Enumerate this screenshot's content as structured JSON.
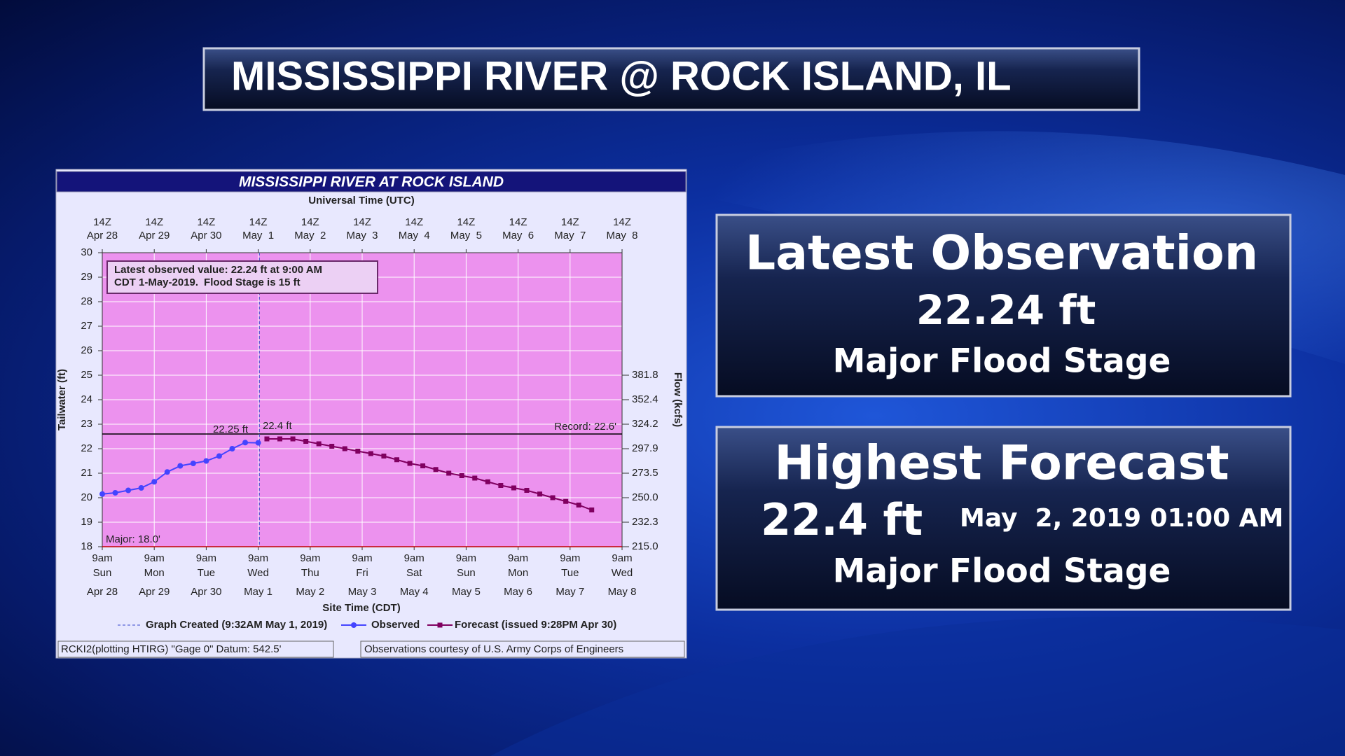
{
  "header": {
    "title": "MISSISSIPPI RIVER @ ROCK ISLAND, IL"
  },
  "panels": [
    {
      "title": "Latest Observation",
      "value": "22.24 ft",
      "stage": "Major Flood Stage"
    },
    {
      "title": "Highest Forecast",
      "value": "22.4 ft",
      "time": "May  2, 2019 01:00 AM",
      "stage": "Major Flood Stage"
    }
  ],
  "chart_data": {
    "type": "line",
    "title": "MISSISSIPPI RIVER AT ROCK ISLAND",
    "x2label": "Universal Time (UTC)",
    "xlabel": "Site Time (CDT)",
    "ylabel": "Tailwater (ft)",
    "y2label": "Flow (kcfs)",
    "xlim": [
      "04-28 09:00",
      "05-08 09:00"
    ],
    "x2lim": [
      "04-28 14:00",
      "05-08 14:00"
    ],
    "xticks": [
      {
        "value": "04-28 09:00",
        "label": [
          "9am",
          "Sun",
          "Apr 28"
        ]
      },
      {
        "value": "04-29 09:00",
        "label": [
          "9am",
          "Mon",
          "Apr 29"
        ]
      },
      {
        "value": "04-30 09:00",
        "label": [
          "9am",
          "Tue",
          "Apr 30"
        ]
      },
      {
        "value": "05-01 09:00",
        "label": [
          "9am",
          "Wed",
          "May 1"
        ]
      },
      {
        "value": "05-02 09:00",
        "label": [
          "9am",
          "Thu",
          "May 2"
        ]
      },
      {
        "value": "05-03 09:00",
        "label": [
          "9am",
          "Fri",
          "May 3"
        ]
      },
      {
        "value": "05-04 09:00",
        "label": [
          "9am",
          "Sat",
          "May 4"
        ]
      },
      {
        "value": "05-05 09:00",
        "label": [
          "9am",
          "Sun",
          "May 5"
        ]
      },
      {
        "value": "05-06 09:00",
        "label": [
          "9am",
          "Mon",
          "May 6"
        ]
      },
      {
        "value": "05-07 09:00",
        "label": [
          "9am",
          "Tue",
          "May 7"
        ]
      },
      {
        "value": "05-08 09:00",
        "label": [
          "9am",
          "Wed",
          "May 8"
        ]
      }
    ],
    "x2ticks": [
      {
        "value": "04-28 14:00",
        "label": [
          "14Z",
          "Apr 28"
        ]
      },
      {
        "value": "04-29 14:00",
        "label": [
          "14Z",
          "Apr 29"
        ]
      },
      {
        "value": "04-30 14:00",
        "label": [
          "14Z",
          "Apr 30"
        ]
      },
      {
        "value": "05-01 14:00",
        "label": [
          "14Z",
          "May  1"
        ]
      },
      {
        "value": "05-02 14:00",
        "label": [
          "14Z",
          "May  2"
        ]
      },
      {
        "value": "05-03 14:00",
        "label": [
          "14Z",
          "May  3"
        ]
      },
      {
        "value": "05-04 14:00",
        "label": [
          "14Z",
          "May  4"
        ]
      },
      {
        "value": "05-05 14:00",
        "label": [
          "14Z",
          "May  5"
        ]
      },
      {
        "value": "05-06 14:00",
        "label": [
          "14Z",
          "May  6"
        ]
      },
      {
        "value": "05-07 14:00",
        "label": [
          "14Z",
          "May  7"
        ]
      },
      {
        "value": "05-08 14:00",
        "label": [
          "14Z",
          "May  8"
        ]
      }
    ],
    "ylim": [
      18,
      30
    ],
    "yticks": [
      18,
      19,
      20,
      21,
      22,
      23,
      24,
      25,
      26,
      27,
      28,
      29,
      30
    ],
    "y2ticks": [
      {
        "value": 215,
        "label": "215.0"
      },
      {
        "value": 232.3,
        "label": "232.3"
      },
      {
        "value": 250,
        "label": "250.0"
      },
      {
        "value": 273.5,
        "label": "273.5"
      },
      {
        "value": 297.9,
        "label": "297.9"
      },
      {
        "value": 324.2,
        "label": "324.2"
      },
      {
        "value": 352.4,
        "label": "352.4"
      },
      {
        "value": 381.8,
        "label": "381.8"
      }
    ],
    "y2_stage": [
      18,
      19,
      20,
      21,
      22,
      23,
      24,
      25
    ],
    "grid": true,
    "background": "#ec92ee",
    "record": {
      "value": 22.6,
      "label": "Record: 22.6'"
    },
    "major": {
      "value": 18,
      "label": "Major: 18.0'"
    },
    "created": {
      "x": "05-01 09:32",
      "label": "Graph Created (9:32AM May 1, 2019)"
    },
    "note": {
      "lines": [
        "Latest observed value: 22.24 ft at 9:00 AM",
        "CDT 1-May-2019."
      ],
      "flood": "Flood Stage is 15 ft"
    },
    "series": [
      {
        "name": "Observed",
        "color": "#4444ff",
        "marker": "circle",
        "x": [
          "04-28 09:00",
          "04-28 15:00",
          "04-28 21:00",
          "04-29 03:00",
          "04-29 09:00",
          "04-29 15:00",
          "04-29 21:00",
          "04-30 03:00",
          "04-30 09:00",
          "04-30 15:00",
          "04-30 21:00",
          "05-01 03:00",
          "05-01 09:00"
        ],
        "values": [
          20.15,
          20.2,
          20.3,
          20.4,
          20.65,
          21.05,
          21.3,
          21.4,
          21.5,
          21.7,
          22.0,
          22.25,
          22.24
        ],
        "value_labels": [
          null,
          null,
          null,
          null,
          null,
          null,
          null,
          null,
          null,
          null,
          null,
          "22.25 ft",
          null
        ]
      },
      {
        "name": "Forecast (issued 9:28PM Apr 30)",
        "color": "#800060",
        "marker": "square",
        "x": [
          "05-01 13:00",
          "05-01 19:00",
          "05-02 01:00",
          "05-02 07:00",
          "05-02 13:00",
          "05-02 19:00",
          "05-03 01:00",
          "05-03 07:00",
          "05-03 13:00",
          "05-03 19:00",
          "05-04 01:00",
          "05-04 07:00",
          "05-04 13:00",
          "05-04 19:00",
          "05-05 01:00",
          "05-05 07:00",
          "05-05 13:00",
          "05-05 19:00",
          "05-06 01:00",
          "05-06 07:00",
          "05-06 13:00",
          "05-06 19:00",
          "05-07 01:00",
          "05-07 07:00",
          "05-07 13:00",
          "05-07 19:00"
        ],
        "values": [
          22.4,
          22.4,
          22.4,
          22.3,
          22.2,
          22.1,
          22.0,
          21.9,
          21.8,
          21.7,
          21.55,
          21.4,
          21.3,
          21.15,
          21.0,
          20.9,
          20.8,
          20.65,
          20.5,
          20.4,
          20.3,
          20.15,
          20.0,
          19.85,
          19.7,
          19.5
        ],
        "value_labels": [
          "22.4 ft",
          null,
          null,
          null,
          null,
          null,
          null,
          null,
          null,
          null,
          null,
          null,
          null,
          null,
          null,
          null,
          null,
          null,
          null,
          null,
          null,
          null,
          null,
          null,
          null,
          null
        ]
      }
    ],
    "footnotes": [
      "RCKI2(plotting HTIRG) \"Gage 0\" Datum: 542.5'",
      "Observations courtesy of U.S. Army Corps of Engineers"
    ]
  }
}
